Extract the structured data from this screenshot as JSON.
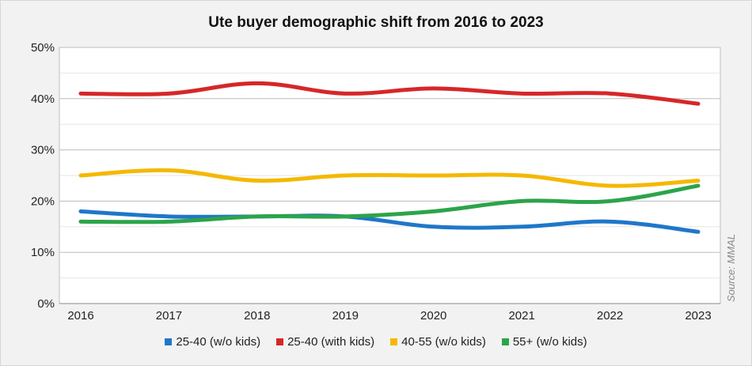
{
  "chart_data": {
    "type": "line",
    "title": "Ute buyer demographic shift from 2016 to 2023",
    "x": [
      "2016",
      "2017",
      "2018",
      "2019",
      "2020",
      "2021",
      "2022",
      "2023"
    ],
    "ylim": [
      0,
      50
    ],
    "yticks": [
      "0%",
      "10%",
      "20%",
      "30%",
      "40%",
      "50%"
    ],
    "grid": true,
    "legend_position": "bottom",
    "source": "Source: MMAL",
    "series": [
      {
        "name": "25-40 (w/o kids)",
        "color": "#1f77c8",
        "values": [
          18,
          17,
          17,
          17,
          15,
          15,
          16,
          14
        ]
      },
      {
        "name": "25-40 (with kids)",
        "color": "#d62728",
        "values": [
          41,
          41,
          43,
          41,
          42,
          41,
          41,
          39
        ]
      },
      {
        "name": "40-55 (w/o kids)",
        "color": "#f5b800",
        "values": [
          25,
          26,
          24,
          25,
          25,
          25,
          23,
          24
        ]
      },
      {
        "name": "55+ (w/o kids)",
        "color": "#2ca44a",
        "values": [
          16,
          16,
          17,
          17,
          18,
          20,
          20,
          23
        ]
      }
    ]
  }
}
